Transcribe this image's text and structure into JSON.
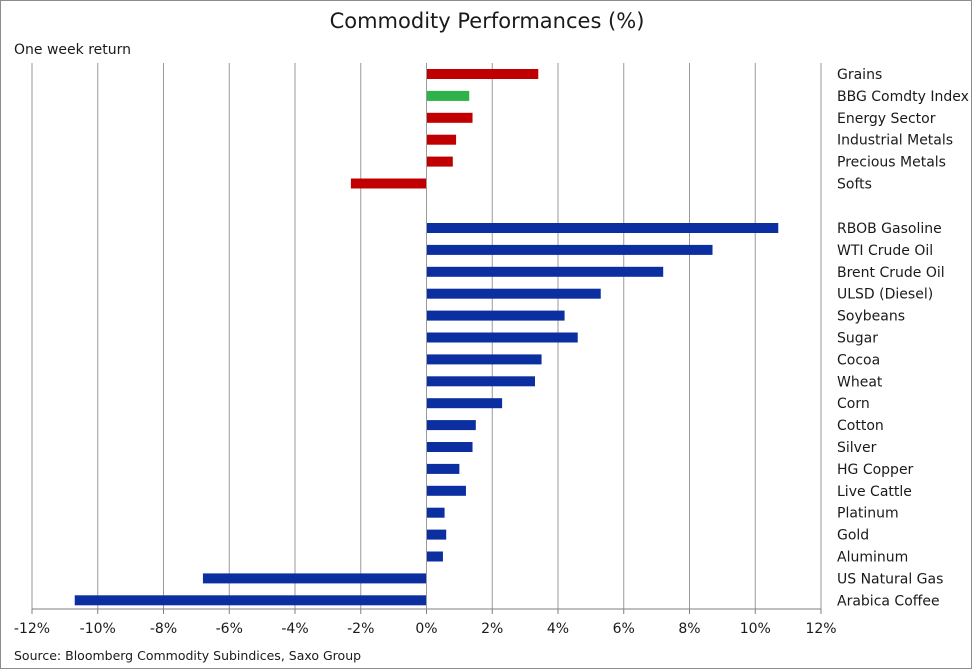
{
  "chart_data": {
    "type": "bar",
    "orientation": "horizontal",
    "title": "Commodity Performances (%)",
    "subtitle": "One week return",
    "source": "Source: Bloomberg Commodity Subindices, Saxo Group",
    "xlim": [
      -12,
      12
    ],
    "xticks": [
      "-12%",
      "-10%",
      "-8%",
      "-6%",
      "-4%",
      "-2%",
      "0%",
      "2%",
      "4%",
      "6%",
      "8%",
      "10%",
      "12%"
    ],
    "grid": "vertical",
    "groups": [
      {
        "categories": [
          "Grains",
          "BBG Comdty Index",
          "Energy Sector",
          "Industrial Metals",
          "Precious Metals",
          "Softs"
        ],
        "values": [
          3.4,
          1.3,
          1.4,
          0.9,
          0.8,
          -2.3
        ],
        "colors": [
          "#c00000",
          "#2db34a",
          "#c00000",
          "#c00000",
          "#c00000",
          "#c00000"
        ]
      },
      {
        "categories": [
          "RBOB Gasoline",
          "WTI Crude Oil",
          "Brent Crude Oil",
          "ULSD (Diesel)",
          "Soybeans",
          "Sugar",
          "Cocoa",
          "Wheat",
          "Corn",
          "Cotton",
          "Silver",
          "HG Copper",
          "Live Cattle",
          "Platinum",
          "Gold",
          "Aluminum",
          "US Natural Gas",
          "Arabica Coffee"
        ],
        "values": [
          10.7,
          8.7,
          7.2,
          5.3,
          4.2,
          4.6,
          3.5,
          3.3,
          2.3,
          1.5,
          1.4,
          1.0,
          1.2,
          0.55,
          0.6,
          0.5,
          -6.8,
          -10.7
        ],
        "colors": [
          "#0b2fa0",
          "#0b2fa0",
          "#0b2fa0",
          "#0b2fa0",
          "#0b2fa0",
          "#0b2fa0",
          "#0b2fa0",
          "#0b2fa0",
          "#0b2fa0",
          "#0b2fa0",
          "#0b2fa0",
          "#0b2fa0",
          "#0b2fa0",
          "#0b2fa0",
          "#0b2fa0",
          "#0b2fa0",
          "#0b2fa0",
          "#0b2fa0"
        ]
      }
    ]
  }
}
